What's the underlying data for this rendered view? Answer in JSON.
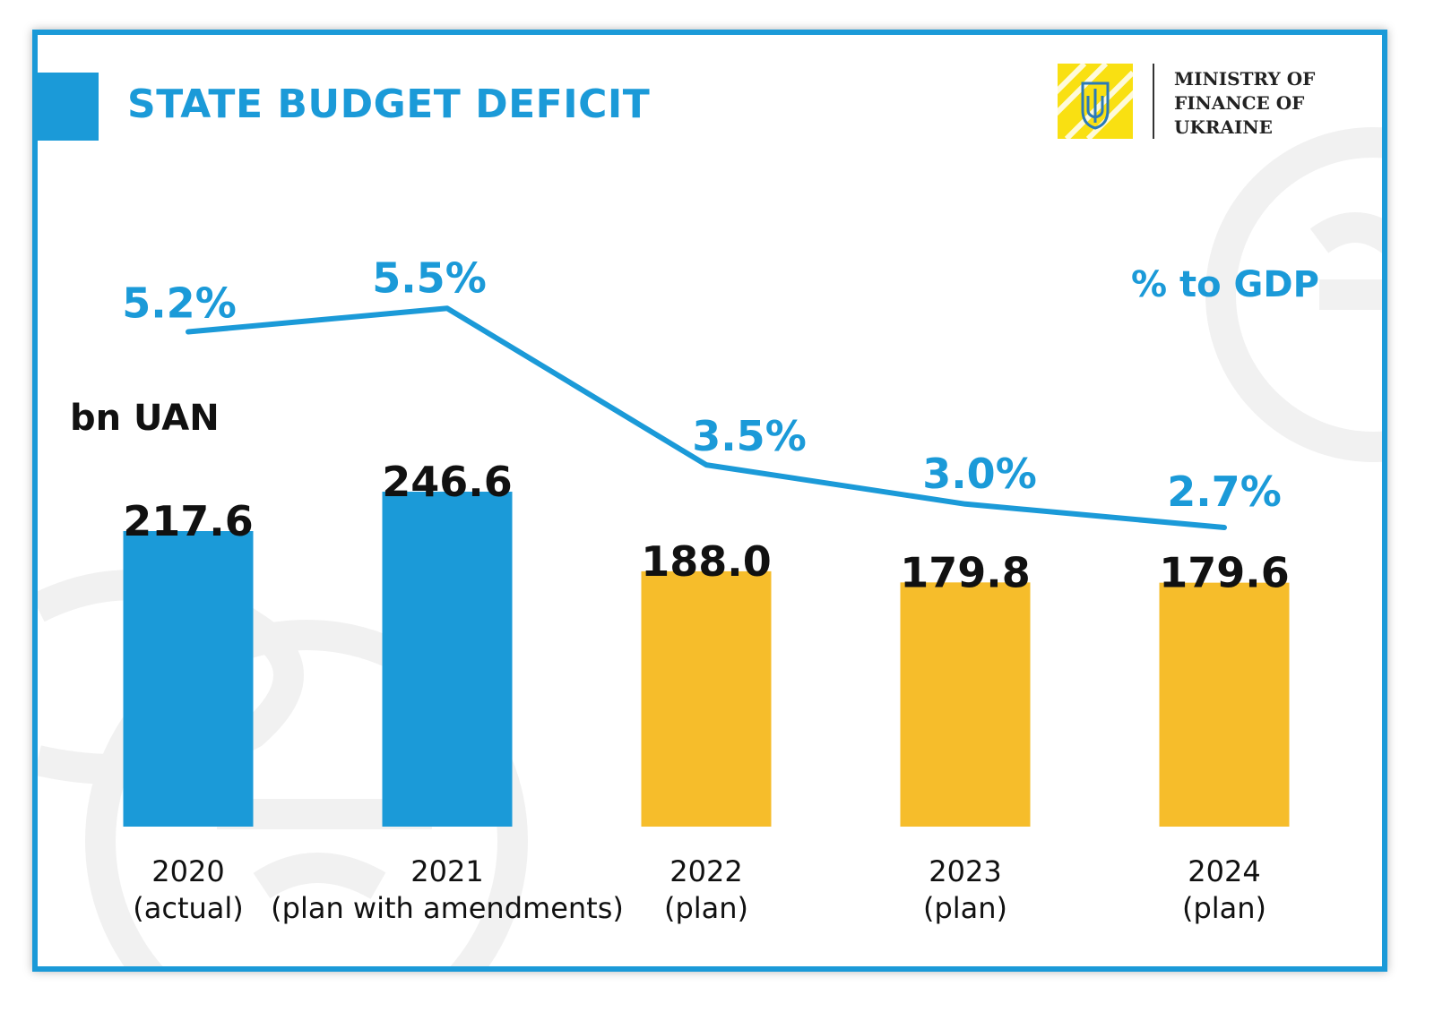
{
  "header": {
    "title": "STATE BUDGET DEFICIT",
    "ministry_lines": [
      "MINISTRY OF",
      "FINANCE OF",
      "UKRAINE"
    ]
  },
  "colors": {
    "blue": "#1b9ad8",
    "yellow": "#f6bd2b",
    "value_text": "#111111"
  },
  "chart_data": {
    "type": "bar",
    "categories": [
      [
        "2020",
        "(actual)"
      ],
      [
        "2021",
        "(plan with amendments)"
      ],
      [
        "2022",
        "(plan)"
      ],
      [
        "2023",
        "(plan)"
      ],
      [
        "2024",
        "(plan)"
      ]
    ],
    "bar_unit_label": "bn UAN",
    "line_unit_label": "% to GDP",
    "bar_values": [
      217.6,
      246.6,
      188.0,
      179.8,
      179.6
    ],
    "bar_value_labels": [
      "217.6",
      "246.6",
      "188.0",
      "179.8",
      "179.6"
    ],
    "bar_color_keys": [
      "blue",
      "blue",
      "yellow",
      "yellow",
      "yellow"
    ],
    "line_values": [
      5.2,
      5.5,
      3.5,
      3.0,
      2.7
    ],
    "line_value_labels": [
      "5.2%",
      "5.5%",
      "3.5%",
      "3.0%",
      "2.7%"
    ],
    "grid": false,
    "legend": "none"
  }
}
